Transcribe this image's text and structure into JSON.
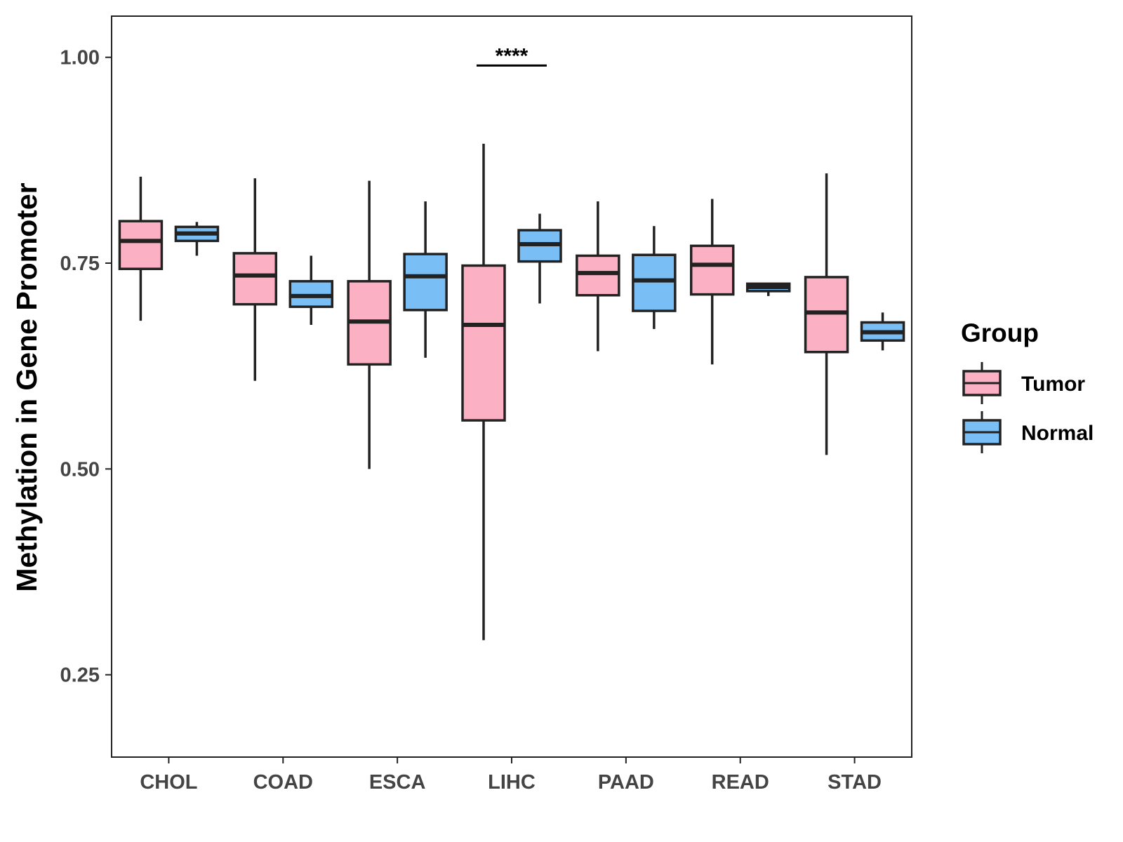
{
  "chart_data": {
    "type": "boxplot",
    "title": "",
    "xlabel": "",
    "ylabel": "Methylation in Gene Promoter",
    "ylim": [
      0.15,
      1.05
    ],
    "yticks": [
      0.25,
      0.5,
      0.75,
      1.0
    ],
    "ytick_labels": [
      "0.25",
      "0.50",
      "0.75",
      "1.00"
    ],
    "categories": [
      "CHOL",
      "COAD",
      "ESCA",
      "LIHC",
      "PAAD",
      "READ",
      "STAD"
    ],
    "grid": false,
    "legend": {
      "title": "Group",
      "position": "right",
      "entries": [
        {
          "name": "Tumor",
          "color": "#FBB1C3"
        },
        {
          "name": "Normal",
          "color": "#79BEF4"
        }
      ]
    },
    "series": [
      {
        "name": "Tumor",
        "color": "#FBB1C3",
        "boxes": [
          {
            "min": 0.68,
            "q1": 0.743,
            "median": 0.777,
            "q3": 0.801,
            "max": 0.855
          },
          {
            "min": 0.607,
            "q1": 0.7,
            "median": 0.735,
            "q3": 0.762,
            "max": 0.853
          },
          {
            "min": 0.5,
            "q1": 0.627,
            "median": 0.679,
            "q3": 0.728,
            "max": 0.85
          },
          {
            "min": 0.292,
            "q1": 0.559,
            "median": 0.675,
            "q3": 0.747,
            "max": 0.895
          },
          {
            "min": 0.643,
            "q1": 0.711,
            "median": 0.738,
            "q3": 0.759,
            "max": 0.825
          },
          {
            "min": 0.627,
            "q1": 0.712,
            "median": 0.748,
            "q3": 0.771,
            "max": 0.828
          },
          {
            "min": 0.517,
            "q1": 0.642,
            "median": 0.69,
            "q3": 0.733,
            "max": 0.859
          }
        ]
      },
      {
        "name": "Normal",
        "color": "#79BEF4",
        "boxes": [
          {
            "min": 0.759,
            "q1": 0.777,
            "median": 0.786,
            "q3": 0.794,
            "max": 0.8
          },
          {
            "min": 0.675,
            "q1": 0.697,
            "median": 0.71,
            "q3": 0.728,
            "max": 0.759
          },
          {
            "min": 0.635,
            "q1": 0.693,
            "median": 0.734,
            "q3": 0.761,
            "max": 0.825
          },
          {
            "min": 0.701,
            "q1": 0.752,
            "median": 0.773,
            "q3": 0.79,
            "max": 0.81
          },
          {
            "min": 0.67,
            "q1": 0.692,
            "median": 0.729,
            "q3": 0.76,
            "max": 0.795
          },
          {
            "min": 0.71,
            "q1": 0.716,
            "median": 0.721,
            "q3": 0.725,
            "max": 0.726
          },
          {
            "min": 0.644,
            "q1": 0.656,
            "median": 0.666,
            "q3": 0.678,
            "max": 0.69
          }
        ]
      }
    ],
    "annotations": [
      {
        "text": "****",
        "category": "LIHC",
        "y": 0.99
      }
    ]
  }
}
